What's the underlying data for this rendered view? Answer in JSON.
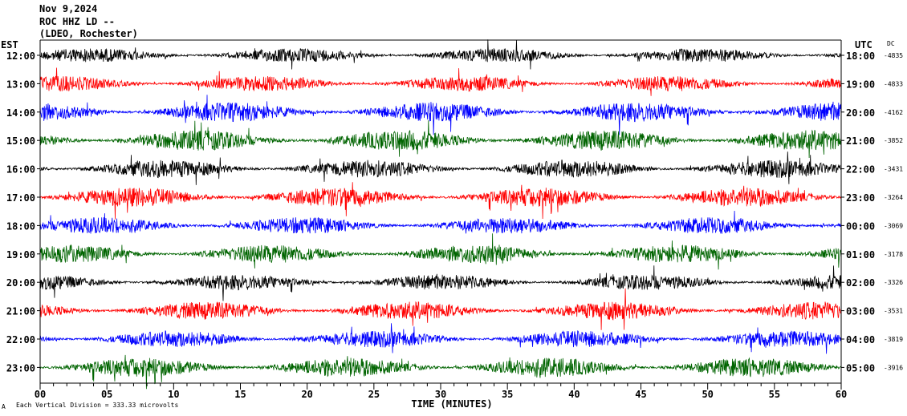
{
  "header": {
    "date": "Nov 9,2024",
    "station": "ROC HHZ LD --",
    "network": "(LDEO, Rochester)"
  },
  "left_axis_label": "EST",
  "right_axis_label": "UTC",
  "dc_label": "DC",
  "footer": {
    "scale_note": "Each Vertical Division =  333.33 microvolts",
    "corner_mark": "A"
  },
  "colors": {
    "trace_cycle": [
      "#000000",
      "#ff0000",
      "#0000ff",
      "#006400"
    ],
    "frame": "#000000",
    "background": "#ffffff"
  },
  "chart_data": {
    "type": "line",
    "title": "",
    "xlabel": "TIME (MINUTES)",
    "ylabel": "",
    "xlim": [
      0,
      60
    ],
    "x_ticks": [
      "00",
      "05",
      "10",
      "15",
      "20",
      "25",
      "30",
      "35",
      "40",
      "45",
      "50",
      "55",
      "60"
    ],
    "x_tick_values": [
      0,
      5,
      10,
      15,
      20,
      25,
      30,
      35,
      40,
      45,
      50,
      55,
      60
    ],
    "rows": [
      {
        "est": "12:00",
        "utc": "18:00",
        "dc": "-4835",
        "color": "#000000",
        "amplitude": 0.55
      },
      {
        "est": "13:00",
        "utc": "19:00",
        "dc": "-4833",
        "color": "#ff0000",
        "amplitude": 0.6
      },
      {
        "est": "14:00",
        "utc": "20:00",
        "dc": "-4162",
        "color": "#0000ff",
        "amplitude": 0.75
      },
      {
        "est": "15:00",
        "utc": "21:00",
        "dc": "-3852",
        "color": "#006400",
        "amplitude": 0.8
      },
      {
        "est": "16:00",
        "utc": "22:00",
        "dc": "-3431",
        "color": "#000000",
        "amplitude": 0.7
      },
      {
        "est": "17:00",
        "utc": "23:00",
        "dc": "-3264",
        "color": "#ff0000",
        "amplitude": 0.75
      },
      {
        "est": "18:00",
        "utc": "00:00",
        "dc": "-3069",
        "color": "#0000ff",
        "amplitude": 0.65
      },
      {
        "est": "19:00",
        "utc": "01:00",
        "dc": "-3178",
        "color": "#006400",
        "amplitude": 0.7
      },
      {
        "est": "20:00",
        "utc": "02:00",
        "dc": "-3326",
        "color": "#000000",
        "amplitude": 0.6
      },
      {
        "est": "21:00",
        "utc": "03:00",
        "dc": "-3531",
        "color": "#ff0000",
        "amplitude": 0.7
      },
      {
        "est": "22:00",
        "utc": "04:00",
        "dc": "-3819",
        "color": "#0000ff",
        "amplitude": 0.65
      },
      {
        "est": "23:00",
        "utc": "05:00",
        "dc": "-3916",
        "color": "#006400",
        "amplitude": 0.75
      }
    ]
  }
}
